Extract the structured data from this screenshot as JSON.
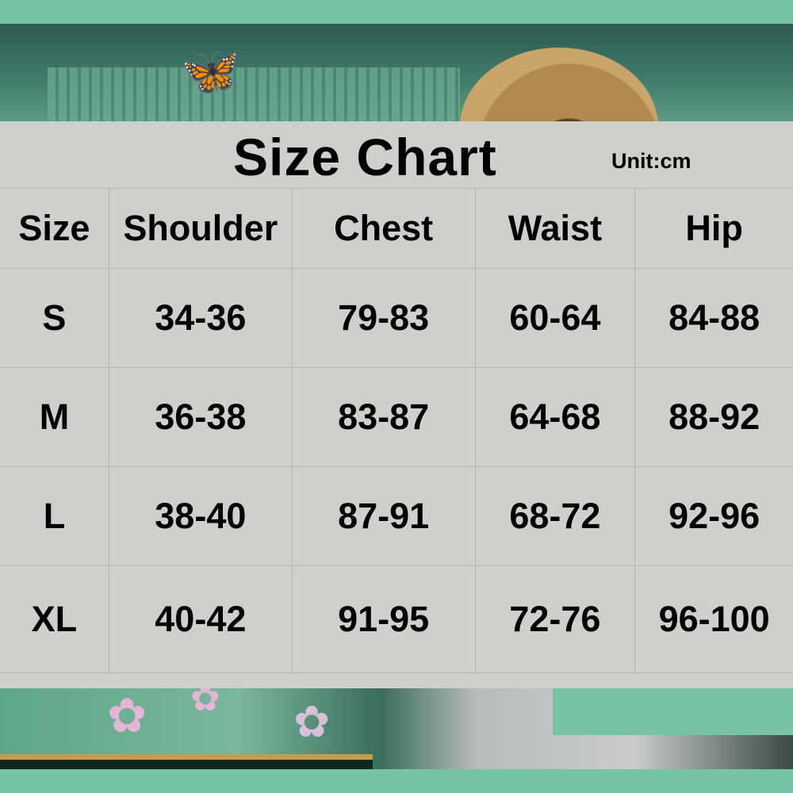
{
  "title": "Size Chart",
  "unit": "Unit:cm",
  "table": {
    "headers": [
      "Size",
      "Shoulder",
      "Chest",
      "Waist",
      "Hip"
    ],
    "rows": [
      [
        "S",
        "34-36",
        "79-83",
        "60-64",
        "84-88"
      ],
      [
        "M",
        "36-38",
        "83-87",
        "64-68",
        "88-92"
      ],
      [
        "L",
        "38-40",
        "87-91",
        "68-72",
        "92-96"
      ],
      [
        "XL",
        "40-42",
        "91-95",
        "72-76",
        "96-100"
      ]
    ]
  },
  "colors": {
    "accent_green": "#77c4a4",
    "sheet_gray": "#cfcfcb",
    "text": "#000000"
  },
  "icons": {
    "butterfly": "butterfly-icon",
    "blossom": "cherry-blossom-icon"
  }
}
